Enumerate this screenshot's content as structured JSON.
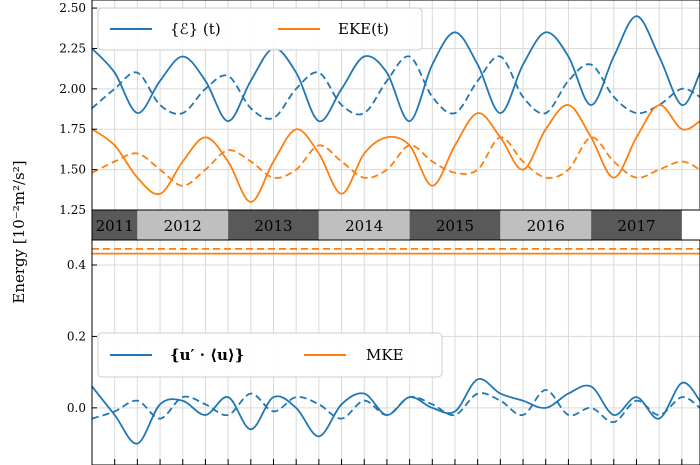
{
  "figure": {
    "ylabel": "Energy [10⁻²m²/s²]"
  },
  "colors": {
    "blue": "#1f77b4",
    "orange": "#ff7f0e",
    "grid": "#d9d9d9",
    "year_dark": "#595959",
    "year_light": "#bfbfbf"
  },
  "year_band": {
    "years": [
      "2011",
      "2012",
      "2013",
      "2014",
      "2015",
      "2016",
      "2017"
    ]
  },
  "chart_data": [
    {
      "type": "line",
      "panel": "top",
      "ylim": [
        1.25,
        2.55
      ],
      "yticks": [
        1.25,
        1.5,
        1.75,
        2.0,
        2.25,
        2.5
      ],
      "ytick_labels": [
        "1.25",
        "1.50",
        "1.75",
        "2.00",
        "2.25",
        "2.50"
      ],
      "xlim": [
        2011.0,
        2017.7
      ],
      "grid": true,
      "legend": {
        "placement": "top-left",
        "entries": [
          "{ℰ} (t)",
          "EKE(t)"
        ]
      },
      "series": [
        {
          "name": "{ℰ} (t)",
          "color": "blue",
          "dash": false,
          "x": [
            2011.0,
            2011.25,
            2011.5,
            2011.75,
            2012.0,
            2012.25,
            2012.5,
            2012.75,
            2013.0,
            2013.25,
            2013.5,
            2013.75,
            2014.0,
            2014.25,
            2014.5,
            2014.75,
            2015.0,
            2015.25,
            2015.5,
            2015.75,
            2016.0,
            2016.25,
            2016.5,
            2016.75,
            2017.0,
            2017.25,
            2017.5,
            2017.7
          ],
          "y": [
            2.25,
            2.1,
            1.85,
            2.05,
            2.2,
            2.05,
            1.8,
            2.05,
            2.25,
            2.1,
            1.8,
            2.0,
            2.2,
            2.1,
            1.8,
            2.15,
            2.35,
            2.15,
            1.85,
            2.15,
            2.35,
            2.2,
            1.9,
            2.2,
            2.45,
            2.2,
            1.9,
            2.1
          ]
        },
        {
          "name": "",
          "color": "blue",
          "dash": true,
          "x": [
            2011.0,
            2011.25,
            2011.5,
            2011.75,
            2012.0,
            2012.25,
            2012.5,
            2012.75,
            2013.0,
            2013.25,
            2013.5,
            2013.75,
            2014.0,
            2014.25,
            2014.5,
            2014.75,
            2015.0,
            2015.25,
            2015.5,
            2015.75,
            2016.0,
            2016.25,
            2016.5,
            2016.75,
            2017.0,
            2017.25,
            2017.5,
            2017.7
          ],
          "y": [
            1.88,
            2.0,
            2.1,
            1.9,
            1.85,
            2.0,
            2.08,
            1.88,
            1.82,
            2.0,
            2.1,
            1.9,
            1.85,
            2.05,
            2.2,
            1.95,
            1.85,
            2.05,
            2.2,
            1.95,
            1.85,
            2.05,
            2.15,
            1.95,
            1.85,
            1.9,
            2.0,
            1.95
          ]
        },
        {
          "name": "EKE(t)",
          "color": "orange",
          "dash": false,
          "x": [
            2011.0,
            2011.25,
            2011.5,
            2011.75,
            2012.0,
            2012.25,
            2012.5,
            2012.75,
            2013.0,
            2013.25,
            2013.5,
            2013.75,
            2014.0,
            2014.25,
            2014.5,
            2014.75,
            2015.0,
            2015.25,
            2015.5,
            2015.75,
            2016.0,
            2016.25,
            2016.5,
            2016.75,
            2017.0,
            2017.25,
            2017.5,
            2017.7
          ],
          "y": [
            1.75,
            1.65,
            1.45,
            1.35,
            1.55,
            1.7,
            1.55,
            1.3,
            1.55,
            1.75,
            1.6,
            1.35,
            1.6,
            1.7,
            1.65,
            1.4,
            1.65,
            1.85,
            1.7,
            1.5,
            1.75,
            1.9,
            1.7,
            1.45,
            1.7,
            1.9,
            1.75,
            1.8
          ]
        },
        {
          "name": "",
          "color": "orange",
          "dash": true,
          "x": [
            2011.0,
            2011.25,
            2011.5,
            2011.75,
            2012.0,
            2012.25,
            2012.5,
            2012.75,
            2013.0,
            2013.25,
            2013.5,
            2013.75,
            2014.0,
            2014.25,
            2014.5,
            2014.75,
            2015.0,
            2015.25,
            2015.5,
            2015.75,
            2016.0,
            2016.25,
            2016.5,
            2016.75,
            2017.0,
            2017.25,
            2017.5,
            2017.7
          ],
          "y": [
            1.48,
            1.55,
            1.6,
            1.5,
            1.4,
            1.5,
            1.62,
            1.55,
            1.45,
            1.5,
            1.65,
            1.55,
            1.45,
            1.5,
            1.65,
            1.55,
            1.48,
            1.5,
            1.7,
            1.55,
            1.45,
            1.5,
            1.7,
            1.55,
            1.45,
            1.5,
            1.55,
            1.5
          ]
        }
      ]
    },
    {
      "type": "line",
      "panel": "bottom",
      "ylim": [
        -0.16,
        0.47
      ],
      "yticks": [
        0.0,
        0.2,
        0.4
      ],
      "ytick_labels": [
        "0.0",
        "0.2",
        "0.4"
      ],
      "xlim": [
        2011.0,
        2017.7
      ],
      "grid": true,
      "legend": {
        "placement": "center-left",
        "entries": [
          "{u′ · ⟨u⟩}",
          "MKE"
        ]
      },
      "series": [
        {
          "name": "{u′ · ⟨u⟩}",
          "color": "blue",
          "dash": false,
          "x": [
            2011.0,
            2011.25,
            2011.5,
            2011.75,
            2012.0,
            2012.25,
            2012.5,
            2012.75,
            2013.0,
            2013.25,
            2013.5,
            2013.75,
            2014.0,
            2014.25,
            2014.5,
            2014.75,
            2015.0,
            2015.25,
            2015.5,
            2015.75,
            2016.0,
            2016.25,
            2016.5,
            2016.75,
            2017.0,
            2017.25,
            2017.5,
            2017.7
          ],
          "y": [
            0.06,
            -0.02,
            -0.1,
            0.01,
            0.02,
            -0.02,
            0.03,
            -0.06,
            0.03,
            0.0,
            -0.08,
            0.01,
            0.04,
            -0.02,
            0.03,
            0.0,
            -0.01,
            0.08,
            0.04,
            0.02,
            0.0,
            0.04,
            0.06,
            -0.02,
            0.03,
            -0.03,
            0.07,
            0.02
          ]
        },
        {
          "name": "",
          "color": "blue",
          "dash": true,
          "x": [
            2011.0,
            2011.25,
            2011.5,
            2011.75,
            2012.0,
            2012.25,
            2012.5,
            2012.75,
            2013.0,
            2013.25,
            2013.5,
            2013.75,
            2014.0,
            2014.25,
            2014.5,
            2014.75,
            2015.0,
            2015.25,
            2015.5,
            2015.75,
            2016.0,
            2016.25,
            2016.5,
            2016.75,
            2017.0,
            2017.25,
            2017.5,
            2017.7
          ],
          "y": [
            -0.03,
            -0.01,
            0.02,
            -0.03,
            0.03,
            0.01,
            -0.02,
            0.04,
            -0.01,
            0.03,
            0.01,
            -0.03,
            0.02,
            -0.02,
            0.03,
            0.01,
            -0.02,
            0.04,
            0.02,
            -0.02,
            0.05,
            -0.02,
            0.0,
            -0.04,
            0.02,
            -0.02,
            0.03,
            0.0
          ]
        },
        {
          "name": "MKE",
          "color": "orange",
          "dash": false,
          "x": [
            2011.0,
            2017.7
          ],
          "y": [
            0.432,
            0.432
          ]
        },
        {
          "name": "",
          "color": "orange",
          "dash": true,
          "x": [
            2011.0,
            2017.7
          ],
          "y": [
            0.445,
            0.445
          ]
        }
      ]
    }
  ]
}
